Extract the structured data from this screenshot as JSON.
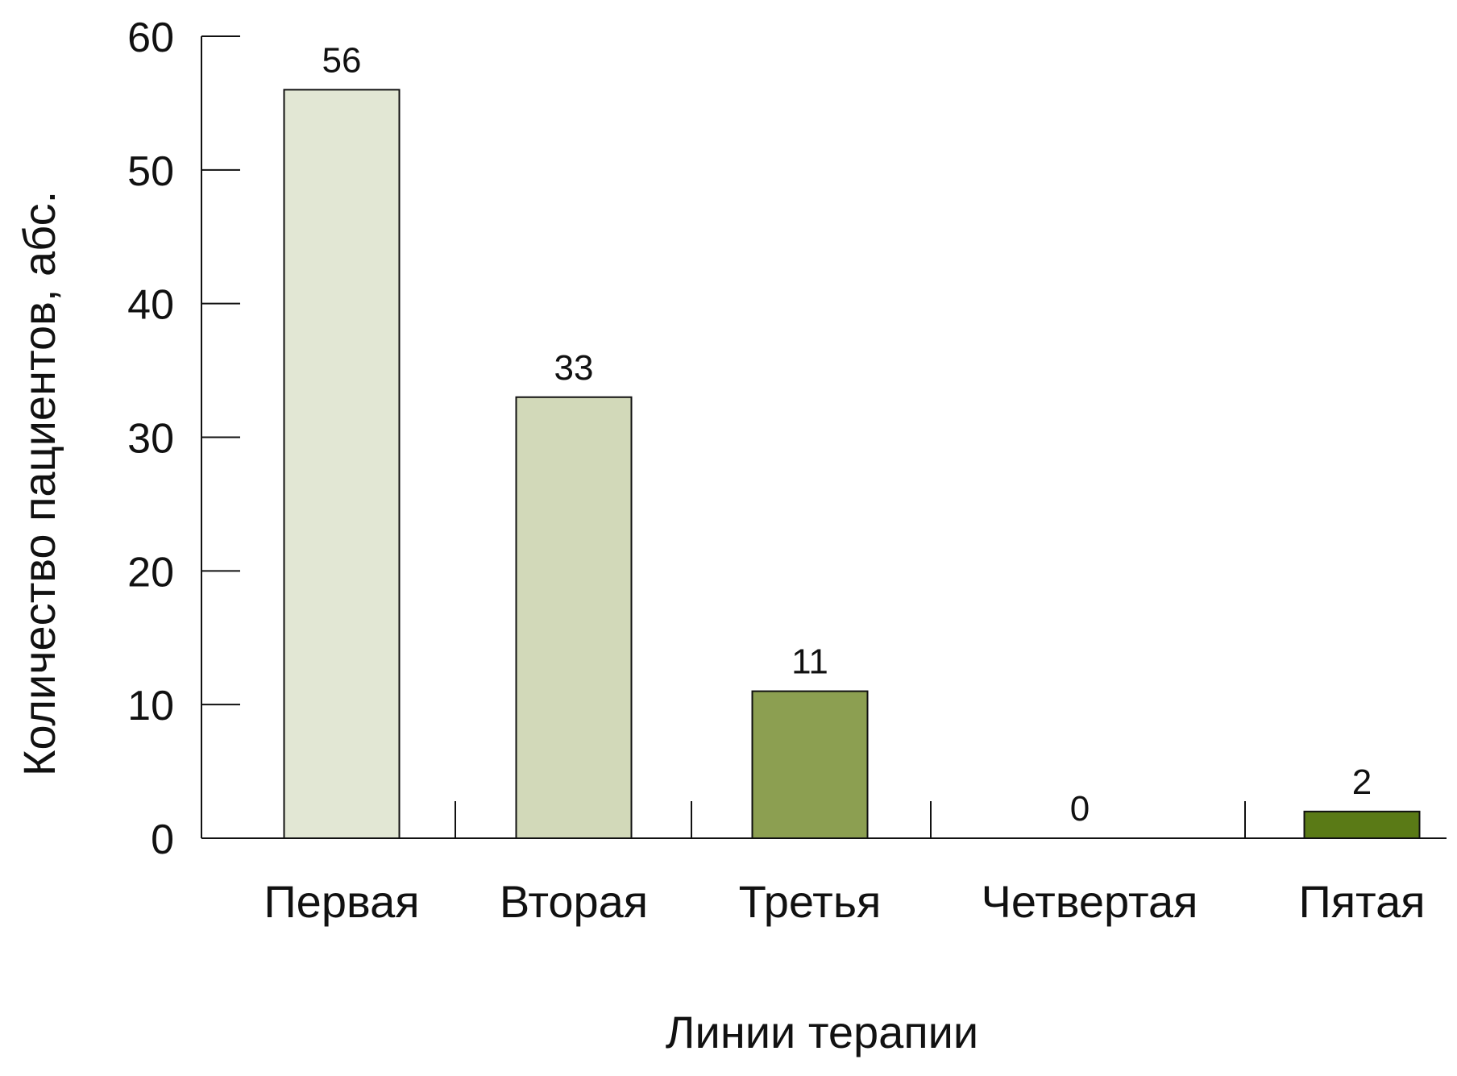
{
  "chart_data": {
    "type": "bar",
    "categories": [
      "Первая",
      "Вторая",
      "Третья",
      "Четвертая",
      "Пятая"
    ],
    "values": [
      56,
      33,
      11,
      0,
      2
    ],
    "bar_colors": [
      "#e2e7d4",
      "#d2d9b9",
      "#8c9f51",
      "#8c9f51",
      "#5a7a16"
    ],
    "xlabel": "Линии терапии",
    "ylabel": "Количество пациентов, абс.",
    "ylim": [
      0,
      60
    ],
    "yticks": [
      0,
      10,
      20,
      30,
      40,
      50,
      60
    ],
    "grid": false,
    "legend": "none"
  }
}
